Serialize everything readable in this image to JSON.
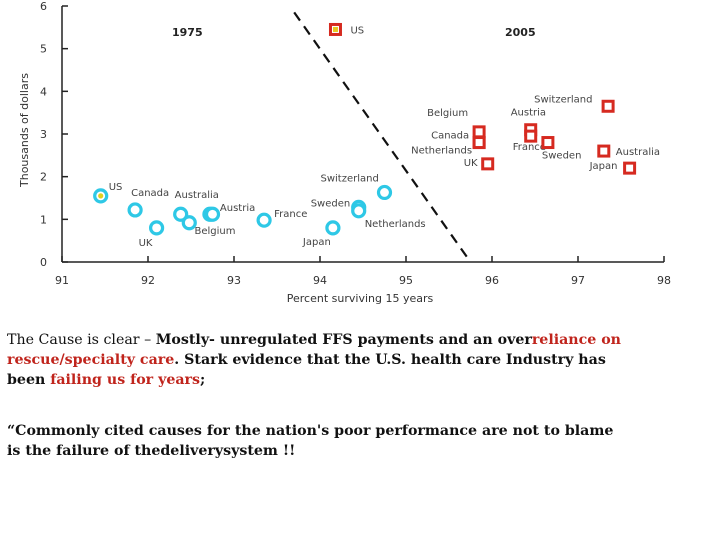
{
  "chart_data": {
    "type": "scatter",
    "xlabel": "Percent surviving 15 years",
    "ylabel": "Thousands of dollars",
    "xlim": [
      91,
      98
    ],
    "ylim": [
      0,
      6
    ],
    "x_ticks": [
      "91",
      "92",
      "93",
      "94",
      "95",
      "96",
      "97",
      "98"
    ],
    "y_ticks": [
      "0",
      "1",
      "2",
      "3",
      "4",
      "5",
      "6"
    ],
    "grid": false,
    "annotations": [
      "1975",
      "2005"
    ],
    "series": [
      {
        "name": "1975",
        "marker": "circle",
        "color": "#2ec8e6",
        "points": [
          {
            "label": "US",
            "x": 91.45,
            "y": 1.55
          },
          {
            "label": "Canada",
            "x": 91.85,
            "y": 1.22
          },
          {
            "label": "UK",
            "x": 92.1,
            "y": 0.8
          },
          {
            "label": "Australia",
            "x": 92.38,
            "y": 1.12
          },
          {
            "label": "",
            "x": 92.48,
            "y": 0.92
          },
          {
            "label": "Austria",
            "x": 92.72,
            "y": 1.12
          },
          {
            "label": "Belgium",
            "x": 92.75,
            "y": 1.12
          },
          {
            "label": "France",
            "x": 93.35,
            "y": 0.98
          },
          {
            "label": "Japan",
            "x": 94.15,
            "y": 0.8
          },
          {
            "label": "Sweden",
            "x": 94.45,
            "y": 1.28
          },
          {
            "label": "Netherlands",
            "x": 94.45,
            "y": 1.2
          },
          {
            "label": "Switzerland",
            "x": 94.75,
            "y": 1.63
          }
        ]
      },
      {
        "name": "2005",
        "marker": "square",
        "color": "#d62a20",
        "points": [
          {
            "label": "US",
            "x": 94.18,
            "y": 5.45
          },
          {
            "label": "Belgium",
            "x": 95.85,
            "y": 3.05
          },
          {
            "label": "Canada",
            "x": 95.85,
            "y": 2.8
          },
          {
            "label": "Netherlands",
            "x": 95.85,
            "y": 2.8
          },
          {
            "label": "UK",
            "x": 95.95,
            "y": 2.3
          },
          {
            "label": "Austria",
            "x": 96.45,
            "y": 3.1
          },
          {
            "label": "France",
            "x": 96.45,
            "y": 2.95
          },
          {
            "label": "Sweden",
            "x": 96.65,
            "y": 2.8
          },
          {
            "label": "Switzerland",
            "x": 97.35,
            "y": 3.65
          },
          {
            "label": "Australia",
            "x": 97.3,
            "y": 2.6
          },
          {
            "label": "Japan",
            "x": 97.6,
            "y": 2.2
          }
        ]
      }
    ],
    "divider": {
      "x1": 93.7,
      "y1": 5.85,
      "x2": 95.75,
      "y2": 0
    }
  },
  "caption": {
    "line1_plain": "The Cause is clear – ",
    "line1_bold": "Mostly- unregulated FFS payments and an over",
    "line1_red": "reliance on",
    "line2_red": "rescue/specialty care",
    "line2_bold": ". Stark evidence that the U.S. health care Industry has",
    "line3_bold": "been ",
    "line3_red": "failing us for years",
    "line3_end": ";",
    "quote_line1": "“Commonly cited causes for the nation's poor performance are not to blame",
    "quote_line2": "is the failure of thedeliverysystem !!"
  }
}
